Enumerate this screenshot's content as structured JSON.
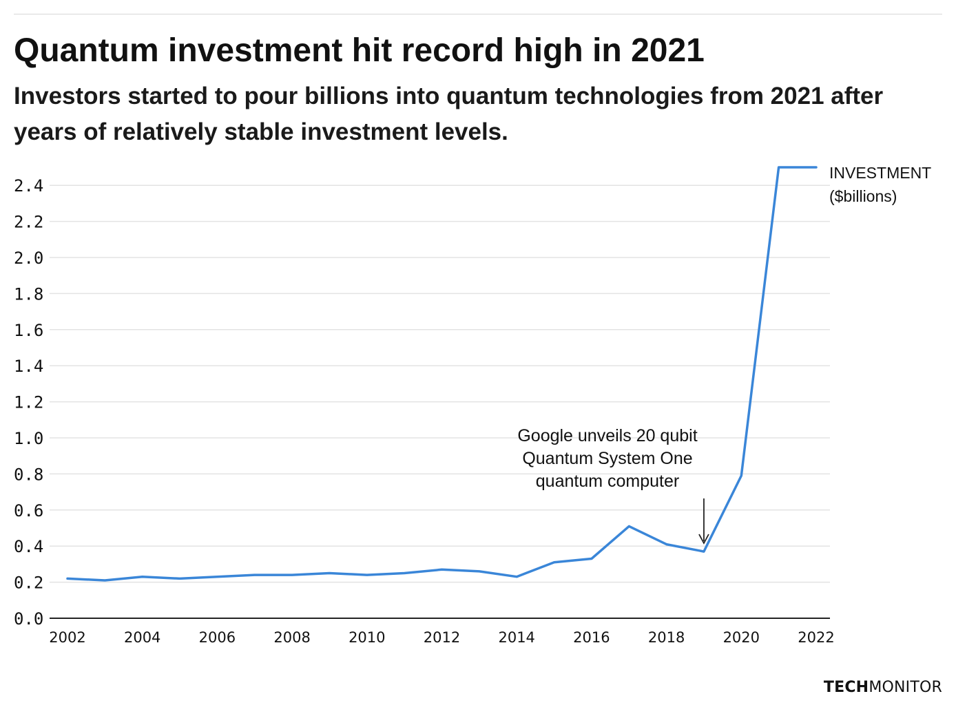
{
  "title": "Quantum investment hit record high in 2021",
  "subtitle": "Investors started to pour billions into quantum technologies from 2021 after years of relatively stable investment levels.",
  "brand": {
    "part1": "TECH",
    "part2": "MONITOR"
  },
  "colors": {
    "line": "#3a86d8",
    "grid": "#e3e3e3",
    "axis": "#222222",
    "text": "#111111"
  },
  "chart_data": {
    "type": "line",
    "title": "Quantum investment hit record high in 2021",
    "subtitle": "Investors started to pour billions into quantum technologies from 2021 after years of relatively stable investment levels.",
    "x": [
      2002,
      2003,
      2004,
      2005,
      2006,
      2007,
      2008,
      2009,
      2010,
      2011,
      2012,
      2013,
      2014,
      2015,
      2016,
      2017,
      2018,
      2019,
      2020,
      2021,
      2022
    ],
    "series": [
      {
        "name": "INVESTMENT ($billions)",
        "values": [
          0.22,
          0.21,
          0.23,
          0.22,
          0.23,
          0.24,
          0.24,
          0.25,
          0.24,
          0.25,
          0.27,
          0.26,
          0.23,
          0.31,
          0.33,
          0.51,
          0.41,
          0.37,
          0.79,
          2.5,
          2.5
        ]
      }
    ],
    "legend_lines": [
      "INVESTMENT",
      "($billions)"
    ],
    "legend_position": "right end of line",
    "xlim": [
      2002,
      2022
    ],
    "ylim": [
      0,
      2.5
    ],
    "xticks": [
      "2002",
      "2004",
      "2006",
      "2008",
      "2010",
      "2012",
      "2014",
      "2016",
      "2018",
      "2020",
      "2022"
    ],
    "yticks": [
      "0.0",
      "0.2",
      "0.4",
      "0.6",
      "0.8",
      "1.0",
      "1.2",
      "1.4",
      "1.6",
      "1.8",
      "2.0",
      "2.2",
      "2.4"
    ],
    "grid": true,
    "annotation": {
      "x": 2019,
      "lines": [
        "Google unveils 20 qubit",
        "Quantum System One",
        "quantum computer"
      ]
    }
  }
}
